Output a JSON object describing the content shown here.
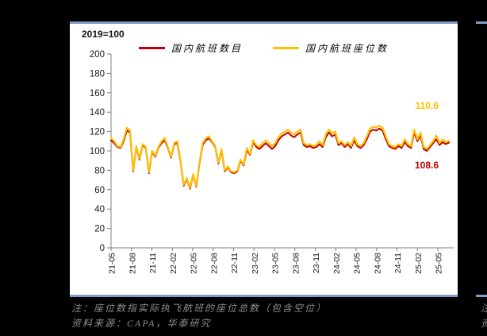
{
  "page": {
    "background": "#000000",
    "divider_color": "#7d9cc8"
  },
  "chart_card": {
    "title": "2019=100",
    "legend": [
      {
        "label": "国内航班数目",
        "color": "#C00000"
      },
      {
        "label": "国内航班座位数",
        "color": "#FFC000"
      }
    ],
    "value_labels": {
      "seats": {
        "text": "110.6",
        "color": "#FFC000"
      },
      "flights": {
        "text": "108.6",
        "color": "#C00000"
      }
    }
  },
  "chart_data": {
    "type": "line",
    "title": "2019=100",
    "legend_position": "top",
    "grid": false,
    "ylim": [
      0,
      200
    ],
    "y_ticks": [
      0,
      20,
      40,
      60,
      80,
      100,
      120,
      140,
      160,
      180,
      200
    ],
    "x_tick_labels": [
      "21-05",
      "21-08",
      "21-11",
      "22-02",
      "22-05",
      "22-08",
      "22-11",
      "23-02",
      "23-05",
      "23-08",
      "23-11",
      "24-02",
      "24-05",
      "24-08",
      "24-11",
      "25-02",
      "25-05"
    ],
    "axis_color": "#7f7f7f",
    "tick_label_color": "#1a1a1a",
    "series": [
      {
        "name": "国内航班数目",
        "color": "#C00000",
        "width": 2,
        "values": [
          111,
          108,
          104,
          103,
          110,
          121,
          119,
          79,
          104,
          91,
          106,
          103,
          77,
          99,
          94,
          103,
          108,
          111,
          103,
          93,
          107,
          108,
          89,
          64,
          71,
          61,
          75,
          63,
          87,
          106,
          111,
          113,
          109,
          104,
          87,
          101,
          79,
          83,
          78,
          77,
          79,
          90,
          85,
          101,
          96,
          109,
          104,
          102,
          105,
          108,
          105,
          102,
          105,
          111,
          115,
          117,
          119,
          116,
          114,
          117,
          119,
          106,
          104,
          105,
          103,
          104,
          107,
          104,
          114,
          119,
          115,
          117,
          106,
          108,
          104,
          107,
          103,
          111,
          105,
          103,
          106,
          112,
          120,
          122,
          121,
          123,
          121,
          112,
          105,
          103,
          102,
          105,
          103,
          109,
          105,
          103,
          119,
          110,
          116,
          102,
          100,
          104,
          108,
          112,
          106,
          109,
          107,
          108.6
        ]
      },
      {
        "name": "国内航班座位数",
        "color": "#FFC000",
        "width": 2.2,
        "values": [
          113,
          110,
          105,
          104,
          112,
          124,
          121,
          80,
          105,
          92,
          107,
          104,
          78,
          100,
          95,
          104,
          110,
          113,
          104,
          94,
          108,
          110,
          90,
          65,
          72,
          62,
          76,
          64,
          88,
          108,
          113,
          115,
          110,
          105,
          88,
          102,
          80,
          84,
          79,
          78,
          80,
          91,
          86,
          103,
          97,
          111,
          106,
          104,
          108,
          111,
          108,
          105,
          108,
          114,
          118,
          120,
          122,
          119,
          117,
          120,
          122,
          108,
          106,
          107,
          105,
          106,
          110,
          106,
          117,
          122,
          118,
          120,
          108,
          110,
          106,
          109,
          105,
          114,
          107,
          105,
          108,
          115,
          123,
          125,
          124,
          126,
          124,
          115,
          107,
          105,
          104,
          107,
          105,
          112,
          107,
          105,
          122,
          112,
          119,
          104,
          102,
          106,
          110,
          116,
          108,
          112,
          109,
          110.6
        ]
      }
    ],
    "end_values": {
      "国内航班座位数": 110.6,
      "国内航班数目": 108.6
    }
  },
  "notes": {
    "line1": "注：座位数指实际执飞航班的座位总数（包含空位）",
    "line2": "资料来源：CAPA，华泰研究",
    "adjacent_fragment_line1": "注：国际航班",
    "adjacent_fragment_line2": "资料来源"
  }
}
